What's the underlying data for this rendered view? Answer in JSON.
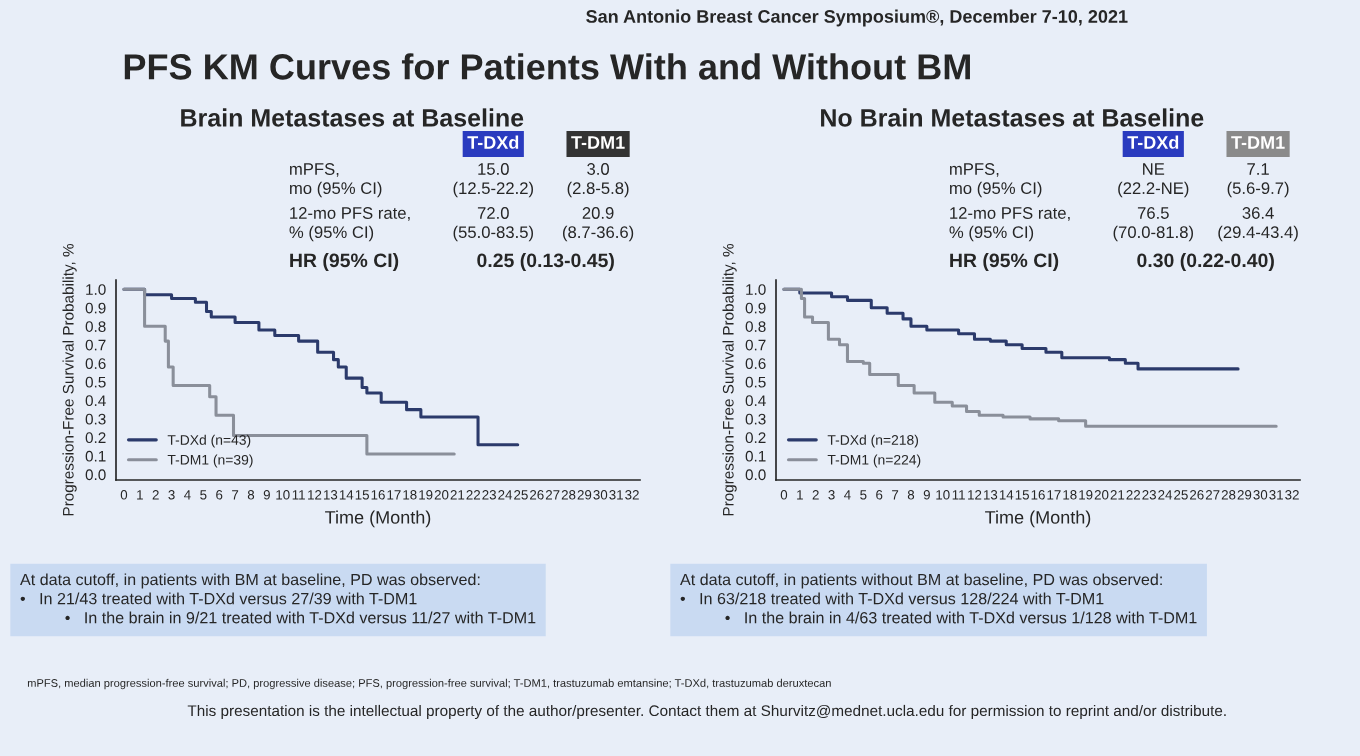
{
  "chart_data": [
    {
      "type": "step",
      "title": "Brain Metastases at Baseline",
      "xlabel": "Time (Month)",
      "ylabel": "Progression-Free Survival Probability, %",
      "xlim": [
        -0.5,
        32.5
      ],
      "ylim": [
        -0.03,
        1.05
      ],
      "xticks": [
        0,
        1,
        2,
        3,
        4,
        5,
        6,
        7,
        8,
        9,
        10,
        11,
        12,
        13,
        14,
        15,
        16,
        17,
        18,
        19,
        20,
        21,
        22,
        23,
        24,
        25,
        26,
        27,
        28,
        29,
        30,
        31,
        32
      ],
      "yticks": [
        {
          "value": 0,
          "label": "0.0"
        },
        {
          "value": 0.1,
          "label": "0.1"
        },
        {
          "value": 0.2,
          "label": "0.2"
        },
        {
          "value": 0.3,
          "label": "0.3"
        },
        {
          "value": 0.4,
          "label": "0.4"
        },
        {
          "value": 0.5,
          "label": "0.5"
        },
        {
          "value": 0.6,
          "label": "0.6"
        },
        {
          "value": 0.7,
          "label": "0.7"
        },
        {
          "value": 0.8,
          "label": "0.8"
        },
        {
          "value": 0.9,
          "label": "0.9"
        },
        {
          "value": 1,
          "label": "1.0"
        }
      ],
      "grid": false,
      "legend": "bottom left",
      "series": [
        {
          "name": "T-DXd (n=43)",
          "color": "#2b3a6b",
          "x": [
            0,
            1.3,
            3,
            4.5,
            5.2,
            5.5,
            7,
            8.5,
            9.5,
            11,
            12.2,
            13.2,
            13.5,
            14,
            15,
            15.3,
            16.2,
            17.8,
            18.7,
            22.3,
            24.8
          ],
          "values": [
            1.0,
            0.97,
            0.95,
            0.93,
            0.88,
            0.85,
            0.82,
            0.78,
            0.75,
            0.72,
            0.66,
            0.62,
            0.58,
            0.52,
            0.47,
            0.44,
            0.39,
            0.35,
            0.31,
            0.16,
            0.16
          ]
        },
        {
          "name": "T-DM1 (n=39)",
          "color": "#8a8f9a",
          "x": [
            0,
            1.3,
            2.6,
            2.8,
            3.1,
            5.4,
            5.8,
            6.9,
            15.3,
            20.8
          ],
          "values": [
            1.0,
            0.8,
            0.72,
            0.58,
            0.48,
            0.42,
            0.32,
            0.21,
            0.11,
            0.11
          ]
        }
      ],
      "annotations": [
        "T-DXd",
        "T-DM1",
        "mPFS,\nmo (95% CI)",
        "15.0\n(12.5-22.2)",
        "3.0\n(2.8-5.8)",
        "12-mo PFS rate,\n% (95% CI)",
        "72.0\n(55.0-83.5)",
        "20.9\n(8.7-36.6)",
        "HR (95% CI)",
        "0.25 (0.13-0.45)",
        "At data cutoff, in patients with BM at baseline, PD was observed:\n•   In 21/43 treated with T-DXd versus 27/39 with T-DM1\n          •   In the brain in 9/21 treated with T-DXd versus 11/27 with T-DM1",
        "San Antonio Breast Cancer Symposium®, December 7-10, 2021",
        "PFS KM Curves for Patients With and Without BM",
        "mPFS, median progression-free survival; PD, progressive disease; PFS, progression-free survival; T-DM1, trastuzumab emtansine; T-DXd, trastuzumab deruxtecan",
        "This presentation is the intellectual property of the author/presenter. Contact them at Shurvitz@mednet.ucla.edu for permission to reprint and/or distribute."
      ]
    },
    {
      "type": "step",
      "title": "No Brain Metastases at Baseline",
      "xlabel": "Time (Month)",
      "ylabel": "Progression-Free Survival Probability, %",
      "xlim": [
        -0.5,
        32.5
      ],
      "ylim": [
        -0.03,
        1.05
      ],
      "xticks": [
        0,
        1,
        2,
        3,
        4,
        5,
        6,
        7,
        8,
        9,
        10,
        11,
        12,
        13,
        14,
        15,
        16,
        17,
        18,
        19,
        20,
        21,
        22,
        23,
        24,
        25,
        26,
        27,
        28,
        29,
        30,
        31,
        32
      ],
      "yticks": [
        {
          "value": 0,
          "label": "0.0"
        },
        {
          "value": 0.1,
          "label": "0.1"
        },
        {
          "value": 0.2,
          "label": "0.2"
        },
        {
          "value": 0.3,
          "label": "0.3"
        },
        {
          "value": 0.4,
          "label": "0.4"
        },
        {
          "value": 0.5,
          "label": "0.5"
        },
        {
          "value": 0.6,
          "label": "0.6"
        },
        {
          "value": 0.7,
          "label": "0.7"
        },
        {
          "value": 0.8,
          "label": "0.8"
        },
        {
          "value": 0.9,
          "label": "0.9"
        },
        {
          "value": 1,
          "label": "1.0"
        }
      ],
      "grid": false,
      "legend": "bottom left",
      "series": [
        {
          "name": "T-DXd (n=218)",
          "color": "#2b3a6b",
          "x": [
            0,
            1,
            3,
            4,
            5.5,
            6.5,
            7.5,
            8,
            9,
            11,
            12,
            13,
            14,
            15,
            16.5,
            17.5,
            20.5,
            21.5,
            22.3,
            28.6
          ],
          "values": [
            1.0,
            0.98,
            0.96,
            0.94,
            0.9,
            0.87,
            0.84,
            0.8,
            0.78,
            0.76,
            0.73,
            0.72,
            0.7,
            0.68,
            0.66,
            0.63,
            0.62,
            0.6,
            0.57,
            0.57
          ]
        },
        {
          "name": "T-DM1 (n=224)",
          "color": "#8a8f9a",
          "x": [
            0,
            1.1,
            1.3,
            1.8,
            2.8,
            3.5,
            4,
            5,
            5.4,
            7.2,
            8.2,
            9.5,
            10.6,
            11.5,
            12.3,
            13.8,
            15.5,
            17.3,
            19,
            31
          ],
          "values": [
            1.0,
            0.95,
            0.85,
            0.82,
            0.73,
            0.7,
            0.61,
            0.6,
            0.54,
            0.48,
            0.44,
            0.39,
            0.37,
            0.34,
            0.32,
            0.31,
            0.3,
            0.29,
            0.26,
            0.26
          ]
        }
      ],
      "annotations": [
        "T-DXd",
        "T-DM1",
        "mPFS,\nmo (95% CI)",
        "NE\n(22.2-NE)",
        "7.1\n(5.6-9.7)",
        "12-mo PFS rate,\n% (95% CI)",
        "76.5\n(70.0-81.8)",
        "36.4\n(29.4-43.4)",
        "HR (95% CI)",
        "0.30 (0.22-0.40)",
        "At data cutoff, in patients without BM at baseline, PD was observed:\n•   In 63/218 treated with T-DXd versus 128/224 with T-DM1\n          •   In the brain in 4/63 treated with T-DXd versus 1/128 with T-DM1"
      ]
    }
  ]
}
